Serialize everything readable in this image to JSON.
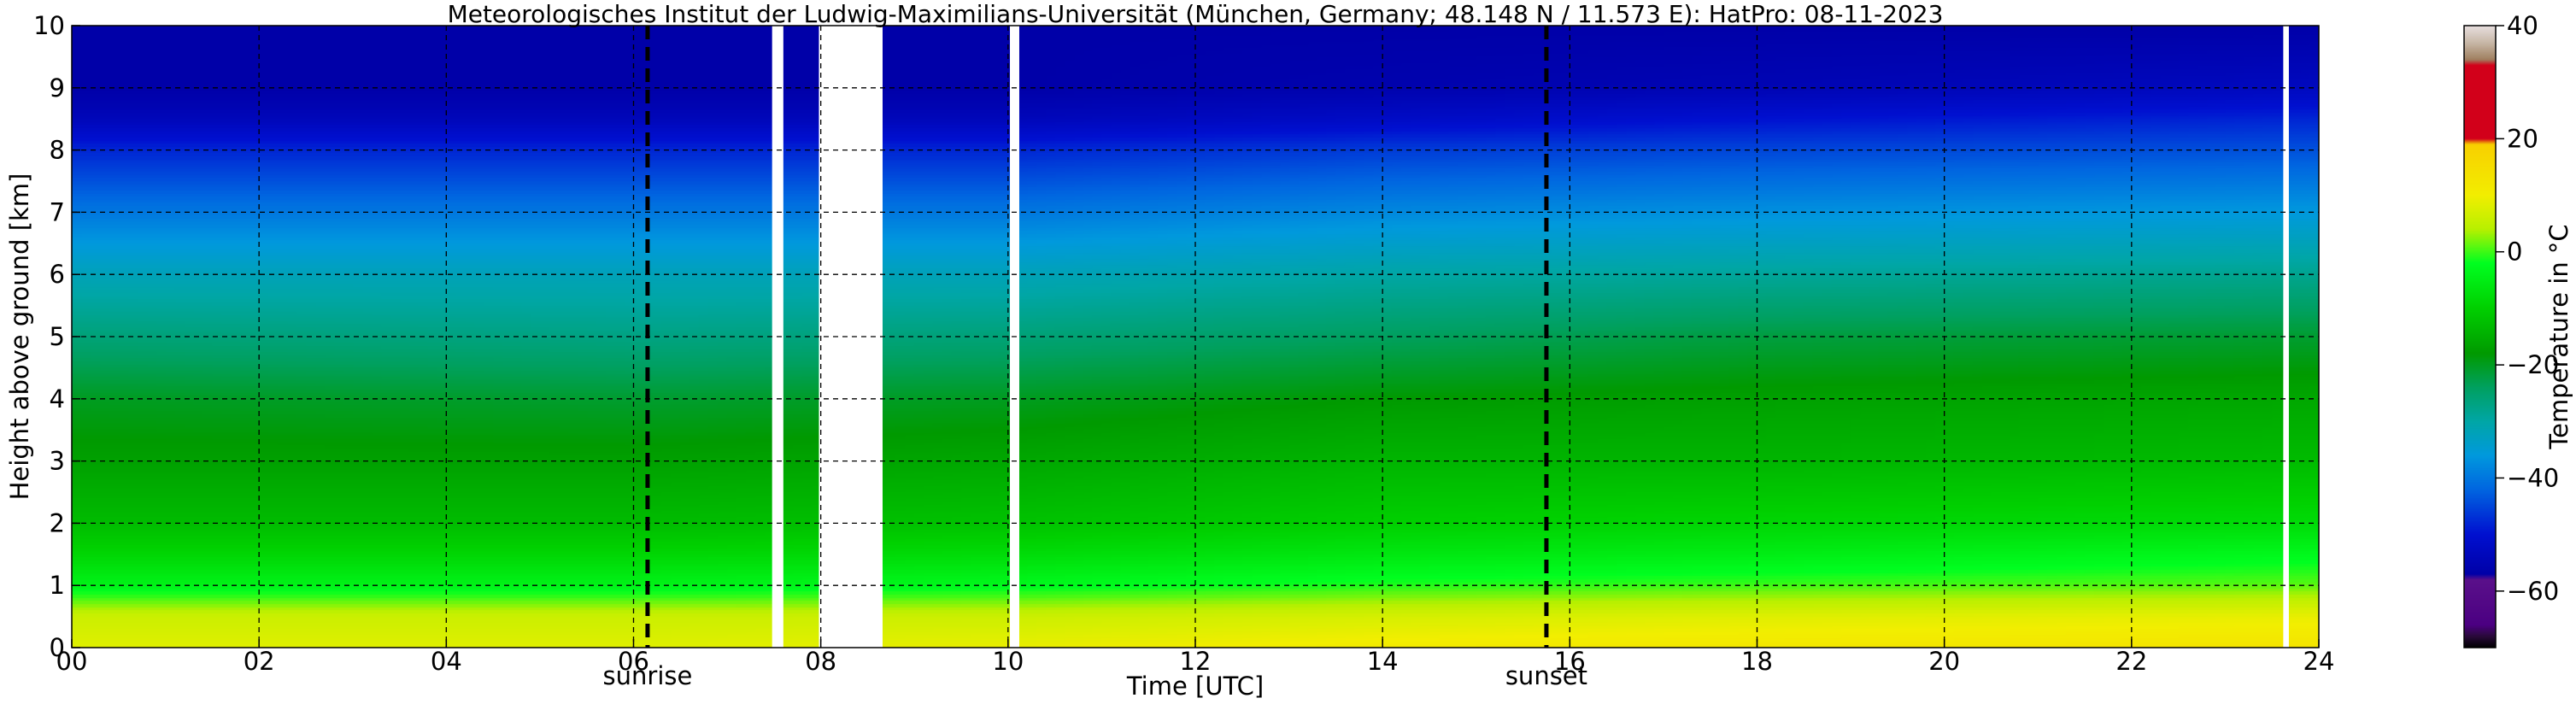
{
  "chart_data": {
    "type": "heatmap",
    "title": "Meteorologisches Institut der Ludwig-Maximilians-Universität (München, Germany; 48.148 N / 11.573 E):    HatPro: 08-11-2023",
    "xlabel": "Time [UTC]",
    "ylabel": "Height above ground [km]",
    "colorbar_label": "Temperature in °C",
    "xlim": [
      0,
      24
    ],
    "ylim": [
      0,
      10
    ],
    "x_ticks": [
      0,
      2,
      4,
      6,
      8,
      10,
      12,
      14,
      16,
      18,
      20,
      22,
      24
    ],
    "x_tick_labels": [
      "00",
      "02",
      "04",
      "06",
      "08",
      "10",
      "12",
      "14",
      "16",
      "18",
      "20",
      "22",
      "24"
    ],
    "y_ticks": [
      0,
      1,
      2,
      3,
      4,
      5,
      6,
      7,
      8,
      9,
      10
    ],
    "y_tick_labels": [
      "0",
      "1",
      "2",
      "3",
      "4",
      "5",
      "6",
      "7",
      "8",
      "9",
      "10"
    ],
    "grid": true,
    "colorbar": {
      "vmin": -70,
      "vmax": 40,
      "ticks": [
        40,
        20,
        0,
        -20,
        -40,
        -60
      ],
      "tick_labels": [
        "40",
        "20",
        "0",
        "−20",
        "−40",
        "−60"
      ],
      "stops": [
        {
          "t": -70,
          "color": "#000000"
        },
        {
          "t": -68,
          "color": "#2a0a3a"
        },
        {
          "t": -66,
          "color": "#4b0082"
        },
        {
          "t": -58,
          "color": "#5a108a"
        },
        {
          "t": -57,
          "color": "#0000a8"
        },
        {
          "t": -50,
          "color": "#0010d0"
        },
        {
          "t": -42,
          "color": "#0066e0"
        },
        {
          "t": -36,
          "color": "#0099dd"
        },
        {
          "t": -30,
          "color": "#00a6a6"
        },
        {
          "t": -24,
          "color": "#00a060"
        },
        {
          "t": -18,
          "color": "#009a00"
        },
        {
          "t": -10,
          "color": "#00d000"
        },
        {
          "t": -2,
          "color": "#00ff20"
        },
        {
          "t": 4,
          "color": "#b8f000"
        },
        {
          "t": 10,
          "color": "#f2ee00"
        },
        {
          "t": 19,
          "color": "#f8d000"
        },
        {
          "t": 20,
          "color": "#d2001a"
        },
        {
          "t": 33,
          "color": "#d2001a"
        },
        {
          "t": 34,
          "color": "#a08060"
        },
        {
          "t": 37,
          "color": "#c8b8a8"
        },
        {
          "t": 40,
          "color": "#e8e0e0"
        }
      ]
    },
    "height_km": [
      0.0,
      0.5,
      1.0,
      1.5,
      2.0,
      3.0,
      4.0,
      5.0,
      6.0,
      7.0,
      7.5,
      8.0,
      8.5,
      9.0,
      10.0
    ],
    "profiles": [
      {
        "time": 0,
        "temperature": [
          8,
          6,
          -4,
          -9,
          -13,
          -17,
          -20,
          -26,
          -32,
          -40,
          -44,
          -48,
          -54,
          -57,
          -57
        ]
      },
      {
        "time": 6,
        "temperature": [
          8,
          6,
          -4,
          -9,
          -13,
          -17,
          -21,
          -27,
          -32,
          -40,
          -44,
          -48,
          -54,
          -57,
          -57
        ]
      },
      {
        "time": 10,
        "temperature": [
          9,
          6,
          -3,
          -8,
          -12,
          -16,
          -20,
          -26,
          -32,
          -40,
          -44,
          -48,
          -54,
          -57,
          -57
        ]
      },
      {
        "time": 14,
        "temperature": [
          11,
          7,
          -1,
          -6,
          -10,
          -14,
          -18,
          -24,
          -30,
          -38,
          -42,
          -46,
          -52,
          -56,
          -57
        ]
      },
      {
        "time": 18,
        "temperature": [
          12,
          8,
          0,
          -5,
          -9,
          -14,
          -17,
          -22,
          -29,
          -37,
          -41,
          -45,
          -50,
          -55,
          -57
        ]
      },
      {
        "time": 24,
        "temperature": [
          13,
          9,
          1,
          -3,
          -8,
          -13,
          -16,
          -21,
          -28,
          -36,
          -40,
          -44,
          -48,
          -53,
          -57
        ]
      }
    ],
    "data_gaps": [
      [
        7.48,
        7.6
      ],
      [
        7.98,
        8.66
      ],
      [
        10.02,
        10.12
      ],
      [
        23.62,
        23.68
      ]
    ],
    "events": [
      {
        "label": "sunrise",
        "time": 6.15
      },
      {
        "label": "sunset",
        "time": 15.75
      }
    ]
  }
}
